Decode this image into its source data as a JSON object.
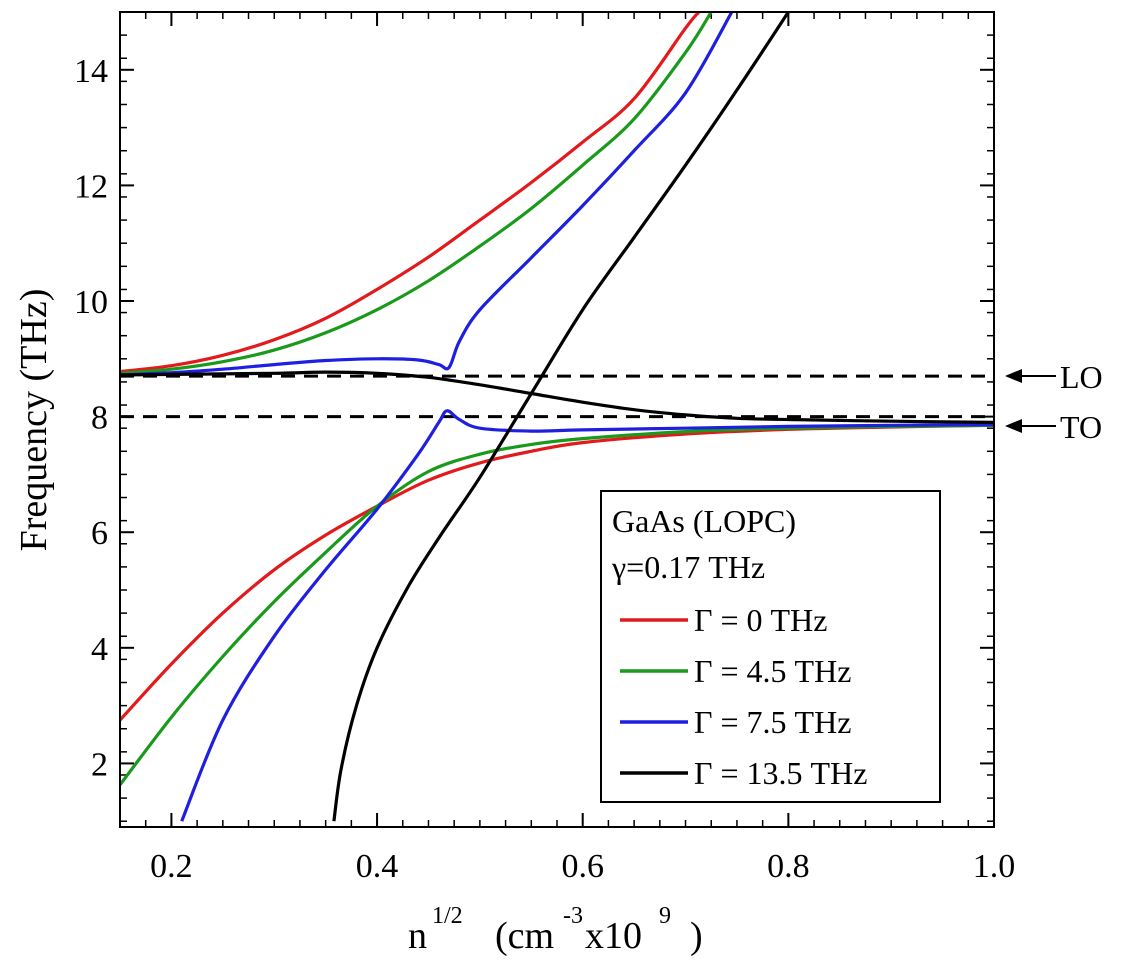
{
  "chart_data": {
    "type": "line",
    "title": "",
    "xlabel_parts": [
      "n",
      "1/2",
      "(cm",
      "-3",
      "x10",
      "9",
      ")"
    ],
    "ylabel": "Frequency (THz)",
    "xlim": [
      0.15,
      1.0
    ],
    "ylim": [
      0.9,
      15.0
    ],
    "xticks": [
      0.2,
      0.4,
      0.6,
      0.8,
      1.0
    ],
    "xtick_labels": [
      "0.2",
      "0.4",
      "0.6",
      "0.8",
      "1.0"
    ],
    "yticks": [
      2,
      4,
      6,
      8,
      10,
      12,
      14
    ],
    "ytick_labels": [
      "2",
      "4",
      "6",
      "8",
      "10",
      "12",
      "14"
    ],
    "reference_lines": [
      {
        "name": "LO",
        "label": "LO",
        "y": 8.7,
        "style": "dashed",
        "color": "#000000"
      },
      {
        "name": "TO",
        "label": "TO",
        "y": 8.0,
        "style": "dashed",
        "color": "#000000"
      }
    ],
    "legend": {
      "placement": "bottom-right",
      "title_lines": [
        "GaAs (LOPC)",
        "γ=0.17 THz"
      ],
      "entries": [
        "Γ = 0 THz",
        "Γ = 4.5 THz",
        "Γ = 7.5 THz",
        "Γ = 13.5 THz"
      ]
    },
    "series": [
      {
        "name": "Γ = 0 THz",
        "color": "#e31a1c",
        "branches": [
          {
            "x": [
              0.15,
              0.2,
              0.25,
              0.3,
              0.35,
              0.4,
              0.45,
              0.5,
              0.55,
              0.6,
              0.65,
              0.7,
              0.713
            ],
            "y": [
              8.78,
              8.88,
              9.06,
              9.33,
              9.7,
              10.2,
              10.76,
              11.4,
              12.05,
              12.75,
              13.5,
              14.72,
              15.0
            ]
          },
          {
            "x": [
              0.15,
              0.2,
              0.25,
              0.3,
              0.35,
              0.4,
              0.45,
              0.5,
              0.55,
              0.6,
              0.7,
              0.8,
              0.9,
              1.0
            ],
            "y": [
              2.75,
              3.72,
              4.6,
              5.35,
              5.95,
              6.45,
              6.9,
              7.2,
              7.4,
              7.55,
              7.7,
              7.78,
              7.82,
              7.85
            ]
          }
        ]
      },
      {
        "name": "Γ = 4.5 THz",
        "color": "#1a9a1a",
        "branches": [
          {
            "x": [
              0.15,
              0.2,
              0.25,
              0.3,
              0.35,
              0.4,
              0.45,
              0.5,
              0.55,
              0.6,
              0.65,
              0.7,
              0.725
            ],
            "y": [
              8.75,
              8.82,
              8.95,
              9.15,
              9.45,
              9.85,
              10.35,
              10.95,
              11.6,
              12.35,
              13.15,
              14.3,
              15.0
            ]
          },
          {
            "x": [
              0.15,
              0.2,
              0.25,
              0.3,
              0.35,
              0.4,
              0.45,
              0.5,
              0.55,
              0.6,
              0.7,
              0.8,
              0.9,
              1.0
            ],
            "y": [
              1.63,
              2.8,
              3.85,
              4.8,
              5.65,
              6.45,
              7.05,
              7.35,
              7.52,
              7.62,
              7.74,
              7.8,
              7.83,
              7.85
            ]
          }
        ]
      },
      {
        "name": "Γ = 7.5 THz",
        "color": "#1f1fe0",
        "branches": [
          {
            "x": [
              0.15,
              0.2,
              0.25,
              0.3,
              0.35,
              0.4,
              0.44,
              0.46,
              0.47,
              0.48,
              0.5,
              0.55,
              0.6,
              0.65,
              0.7,
              0.745
            ],
            "y": [
              8.72,
              8.76,
              8.82,
              8.9,
              8.97,
              9.0,
              8.98,
              8.9,
              8.85,
              9.3,
              9.85,
              10.75,
              11.65,
              12.6,
              13.6,
              15.0
            ]
          },
          {
            "x": [
              0.21,
              0.25,
              0.3,
              0.35,
              0.4,
              0.44,
              0.46,
              0.468,
              0.48,
              0.5,
              0.55,
              0.6,
              0.7,
              0.8,
              0.9,
              1.0
            ],
            "y": [
              1.0,
              2.75,
              4.2,
              5.35,
              6.4,
              7.35,
              7.9,
              8.1,
              7.95,
              7.8,
              7.75,
              7.77,
              7.8,
              7.83,
              7.85,
              7.86
            ]
          }
        ]
      },
      {
        "name": "Γ = 13.5 THz",
        "color": "#000000",
        "branches": [
          {
            "x": [
              0.15,
              0.2,
              0.3,
              0.35,
              0.4,
              0.45,
              0.5,
              0.55,
              0.6,
              0.65,
              0.7,
              0.75,
              0.8,
              0.9,
              1.0
            ],
            "y": [
              8.72,
              8.73,
              8.75,
              8.77,
              8.75,
              8.68,
              8.55,
              8.4,
              8.25,
              8.12,
              8.03,
              7.97,
              7.95,
              7.92,
              7.9
            ]
          },
          {
            "x": [
              0.358,
              0.365,
              0.38,
              0.4,
              0.43,
              0.46,
              0.5,
              0.55,
              0.6,
              0.65,
              0.7,
              0.75,
              0.8
            ],
            "y": [
              1.0,
              1.9,
              3.0,
              4.0,
              5.05,
              5.9,
              6.95,
              8.4,
              9.85,
              11.1,
              12.35,
              13.65,
              15.0
            ]
          }
        ]
      }
    ]
  }
}
